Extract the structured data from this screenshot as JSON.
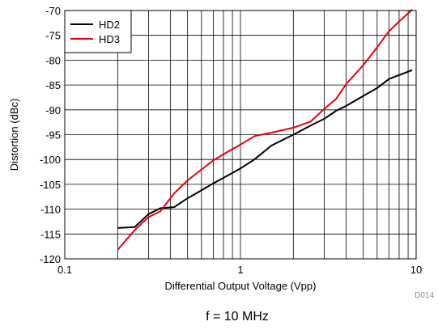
{
  "chart_data": {
    "type": "line",
    "title": "",
    "xlabel": "Differential Output Voltage (Vpp)",
    "ylabel": "Distortion (dBc)",
    "x_scale": "log",
    "xlim": [
      0.1,
      10
    ],
    "ylim": [
      -120,
      -70
    ],
    "x_ticks": [
      0.1,
      1,
      10
    ],
    "x_tick_labels": [
      "0.1",
      "1",
      "10"
    ],
    "y_ticks": [
      -120,
      -115,
      -110,
      -105,
      -100,
      -95,
      -90,
      -85,
      -80,
      -75,
      -70
    ],
    "y_tick_labels": [
      "-120",
      "-115",
      "-110",
      "-105",
      "-100",
      "-95",
      "-90",
      "-85",
      "-80",
      "-75",
      "-70"
    ],
    "grid": true,
    "legend_position": "top-left",
    "series": [
      {
        "name": "HD2",
        "color": "#000000",
        "x": [
          0.2,
          0.25,
          0.3,
          0.35,
          0.42,
          0.5,
          0.6,
          0.7,
          0.85,
          1.0,
          1.2,
          1.5,
          2.0,
          2.5,
          3.0,
          3.5,
          4.0,
          5.0,
          6.0,
          7.0,
          8.0,
          9.5
        ],
        "y": [
          -113.8,
          -113.6,
          -111.0,
          -109.8,
          -109.6,
          -107.8,
          -106.2,
          -104.8,
          -103.2,
          -101.8,
          -100.0,
          -97.2,
          -95.0,
          -93.2,
          -91.8,
          -90.2,
          -89.2,
          -87.2,
          -85.6,
          -83.8,
          -83.0,
          -82.0
        ]
      },
      {
        "name": "HD3",
        "color": "#e8000b",
        "x": [
          0.2,
          0.25,
          0.3,
          0.35,
          0.42,
          0.5,
          0.6,
          0.7,
          0.85,
          1.0,
          1.2,
          1.5,
          2.0,
          2.5,
          3.0,
          3.5,
          4.0,
          5.0,
          6.0,
          7.0,
          8.0,
          9.5
        ],
        "y": [
          -118.2,
          -114.2,
          -111.6,
          -110.4,
          -106.8,
          -104.2,
          -102.0,
          -100.2,
          -98.4,
          -97.0,
          -95.3,
          -94.6,
          -93.6,
          -92.4,
          -89.8,
          -87.8,
          -84.8,
          -81.0,
          -77.4,
          -74.2,
          -72.2,
          -69.8
        ]
      }
    ],
    "figure_code": "D014",
    "caption": "f = 10 MHz"
  }
}
